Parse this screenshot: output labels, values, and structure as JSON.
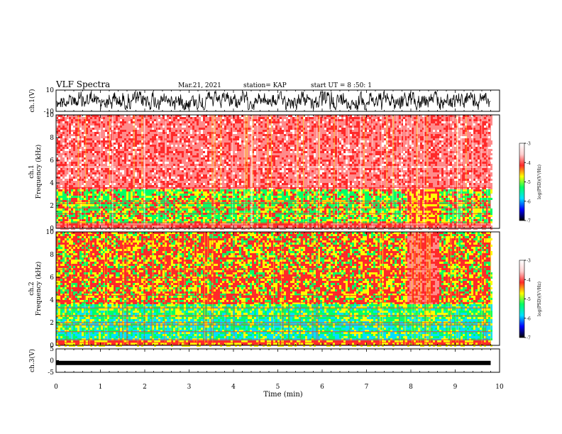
{
  "header": {
    "title": "VLF Spectra",
    "date": "Mar.21, 2021",
    "station": "station= KAP",
    "start": "start UT = 8 :50: 1"
  },
  "chart_data": [
    {
      "type": "line",
      "name": "ch1-waveform",
      "ylabel": "ch.1(V)",
      "ylim": [
        -10,
        10
      ],
      "yticks": [
        "10",
        "-10"
      ],
      "xlim": [
        0,
        10
      ]
    },
    {
      "type": "heatmap",
      "name": "ch1-spectrogram",
      "ylabel": "ch.1\nFrequency (kHz)",
      "ylim": [
        0,
        10
      ],
      "yticks": [
        "0",
        "2",
        "4",
        "6",
        "8",
        "10"
      ],
      "xlim": [
        0,
        10
      ],
      "data_end_min": 9.8,
      "disturbance_window_min": [
        7.9,
        8.6
      ],
      "colorbar": {
        "label": "log(PSD)(V²/Hz)",
        "range": [
          -7,
          -3
        ],
        "ticks": [
          "-7",
          "-6",
          "-5",
          "-4",
          "-3"
        ]
      }
    },
    {
      "type": "heatmap",
      "name": "ch2-spectrogram",
      "ylabel": "ch.2\nFrequency (kHz)",
      "ylim": [
        0,
        10
      ],
      "yticks": [
        "0",
        "2",
        "4",
        "6",
        "8",
        "10"
      ],
      "xlim": [
        0,
        10
      ],
      "data_end_min": 9.8,
      "disturbance_window_min": [
        7.9,
        8.6
      ],
      "colorbar": {
        "label": "log(PSD)(V²/Hz)",
        "range": [
          -7,
          -3
        ],
        "ticks": [
          "-7",
          "-6",
          "-5",
          "-4",
          "-3"
        ]
      }
    },
    {
      "type": "line",
      "name": "ch3-waveform",
      "ylabel": "ch.3(V)",
      "ylim": [
        -5,
        5
      ],
      "yticks": [
        "5",
        "0",
        "-5"
      ],
      "level": -1,
      "xlim": [
        0,
        10
      ]
    }
  ],
  "xaxis": {
    "label": "Time (min)",
    "ticks": [
      "0",
      "1",
      "2",
      "3",
      "4",
      "5",
      "6",
      "7",
      "8",
      "9",
      "10"
    ]
  },
  "palette": [
    "#0000ff",
    "#00e0ff",
    "#00ff66",
    "#ffff00",
    "#ff2a2a",
    "#ff8a8a",
    "#ffffff"
  ]
}
